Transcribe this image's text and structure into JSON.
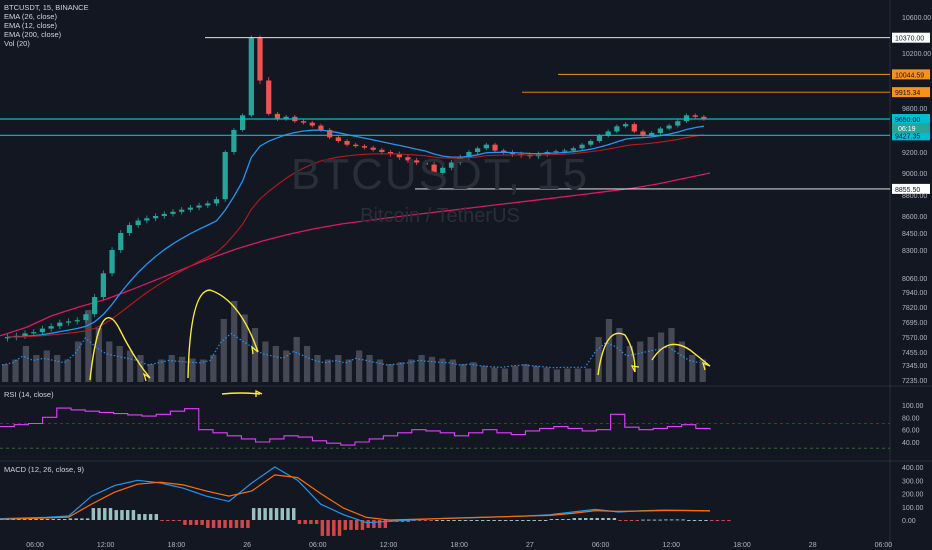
{
  "symbol_line": "BTCUSDT, 15, BINANCE",
  "indicators": [
    "EMA (26, close)",
    "EMA (12, close)",
    "EMA (200, close)",
    "Vol (20)"
  ],
  "watermark": {
    "ticker": "BTCUSDT, 15",
    "pair": "Bitcoin / TetherUS"
  },
  "colors": {
    "background": "#131722",
    "up": "#26a69a",
    "down": "#ef5350",
    "ema12": "#2196f3",
    "ema26": "#b71c1c",
    "ema200": "#d81b60",
    "horizontal_cyan": "#00bcd4",
    "horizontal_orange": "#f7931a",
    "rsi": "#e040fb",
    "macd": "#2196f3",
    "signal": "#ff6d00",
    "annotation": "#ffeb3b"
  },
  "chart_data": [
    {
      "type": "candlestick",
      "title": "BTCUSDT, 15, BINANCE",
      "price_axis_ticks": [
        10600,
        10200,
        9800,
        9200,
        9000,
        8800,
        8600,
        8450,
        8300,
        8060,
        7940,
        7820,
        7695,
        7570,
        7455,
        7345,
        7235
      ],
      "time_axis_ticks": [
        "06:00",
        "12:00",
        "18:00",
        "26",
        "06:00",
        "12:00",
        "18:00",
        "27",
        "06:00",
        "12:00",
        "18:00",
        "28",
        "06:00"
      ],
      "price_levels": [
        {
          "value": 10370.0,
          "label": "10370.00",
          "color": "#ffffff"
        },
        {
          "value": 10044.59,
          "label": "10044.59",
          "color": "#f7931a"
        },
        {
          "value": 9915.34,
          "label": "9915.34",
          "color": "#f7931a"
        },
        {
          "value": 9650.0,
          "label": "9650.00",
          "color": "#00bcd4"
        },
        {
          "value": 9427.35,
          "label": "9427.35",
          "color": "#00bcd4"
        },
        {
          "value": 8855.5,
          "label": "8855.50",
          "color": "#ffffff"
        }
      ],
      "last_price": {
        "value": 9650.0,
        "countdown": "06:19"
      },
      "close_series": [
        7570,
        7580,
        7600,
        7610,
        7640,
        7660,
        7690,
        7700,
        7710,
        7760,
        7900,
        8100,
        8300,
        8450,
        8520,
        8560,
        8580,
        8600,
        8620,
        8640,
        8660,
        8680,
        8700,
        8720,
        8760,
        9200,
        9500,
        9700,
        10370,
        10000,
        9720,
        9650,
        9680,
        9620,
        9600,
        9560,
        9500,
        9400,
        9350,
        9300,
        9280,
        9260,
        9230,
        9200,
        9180,
        9150,
        9120,
        9100,
        9080,
        9000,
        9050,
        9100,
        9150,
        9200,
        9250,
        9300,
        9220,
        9200,
        9180,
        9170,
        9160,
        9180,
        9200,
        9210,
        9220,
        9250,
        9300,
        9350,
        9420,
        9480,
        9550,
        9580,
        9480,
        9420,
        9460,
        9520,
        9560,
        9620,
        9700,
        9680,
        9650
      ],
      "ema200": [
        7580,
        7650,
        7750,
        7820,
        7880,
        7960,
        8050,
        8140,
        8230,
        8310,
        8380,
        8440,
        8490,
        8530,
        8560,
        8590,
        8620,
        8650,
        8680,
        8710,
        8740,
        8770,
        8800,
        8830,
        8860,
        8900,
        8950,
        9000
      ]
    },
    {
      "type": "volume",
      "ylabel": "Vol (20)",
      "values": [
        20,
        25,
        40,
        30,
        35,
        30,
        25,
        45,
        80,
        60,
        45,
        40,
        35,
        30,
        20,
        25,
        30,
        28,
        26,
        25,
        30,
        70,
        90,
        75,
        60,
        45,
        40,
        35,
        50,
        40,
        30,
        25,
        30,
        25,
        35,
        30,
        25,
        20,
        22,
        25,
        30,
        28,
        26,
        25,
        20,
        22,
        18,
        16,
        15,
        18,
        20,
        18,
        16,
        14,
        15,
        15,
        15,
        50,
        70,
        60,
        40,
        45,
        50,
        55,
        60,
        45,
        30,
        25
      ]
    },
    {
      "type": "line",
      "title": "RSI (14, close)",
      "axis_ticks": [
        100.0,
        80.0,
        60.0,
        40.0
      ],
      "levels": [
        70,
        30
      ],
      "series": [
        {
          "values": [
            65,
            68,
            70,
            80,
            95,
            92,
            90,
            88,
            86,
            84,
            82,
            85,
            90,
            94,
            60,
            55,
            50,
            45,
            40,
            45,
            50,
            48,
            42,
            38,
            35,
            40,
            45,
            50,
            55,
            60,
            58,
            55,
            50,
            55,
            60,
            55,
            52,
            58,
            62,
            65,
            62,
            58,
            60,
            85,
            64,
            60,
            62,
            65,
            68,
            62,
            60
          ]
        }
      ]
    },
    {
      "type": "line",
      "title": "MACD (12, 26, close, 9)",
      "axis_ticks": [
        400.0,
        300.0,
        200.0,
        100.0,
        0.0
      ],
      "series": [
        {
          "name": "MACD",
          "values": [
            10,
            15,
            20,
            30,
            180,
            260,
            300,
            280,
            240,
            180,
            140,
            280,
            400,
            300,
            120,
            40,
            -20,
            -10,
            0,
            10,
            15,
            20,
            25,
            30,
            40,
            60,
            80,
            60,
            70,
            75,
            72,
            68
          ]
        },
        {
          "name": "Signal",
          "values": [
            5,
            10,
            15,
            22,
            120,
            210,
            270,
            285,
            265,
            220,
            180,
            220,
            340,
            320,
            200,
            90,
            20,
            0,
            5,
            10,
            15,
            20,
            25,
            30,
            35,
            50,
            70,
            65,
            68,
            72,
            72,
            70
          ]
        }
      ]
    }
  ]
}
